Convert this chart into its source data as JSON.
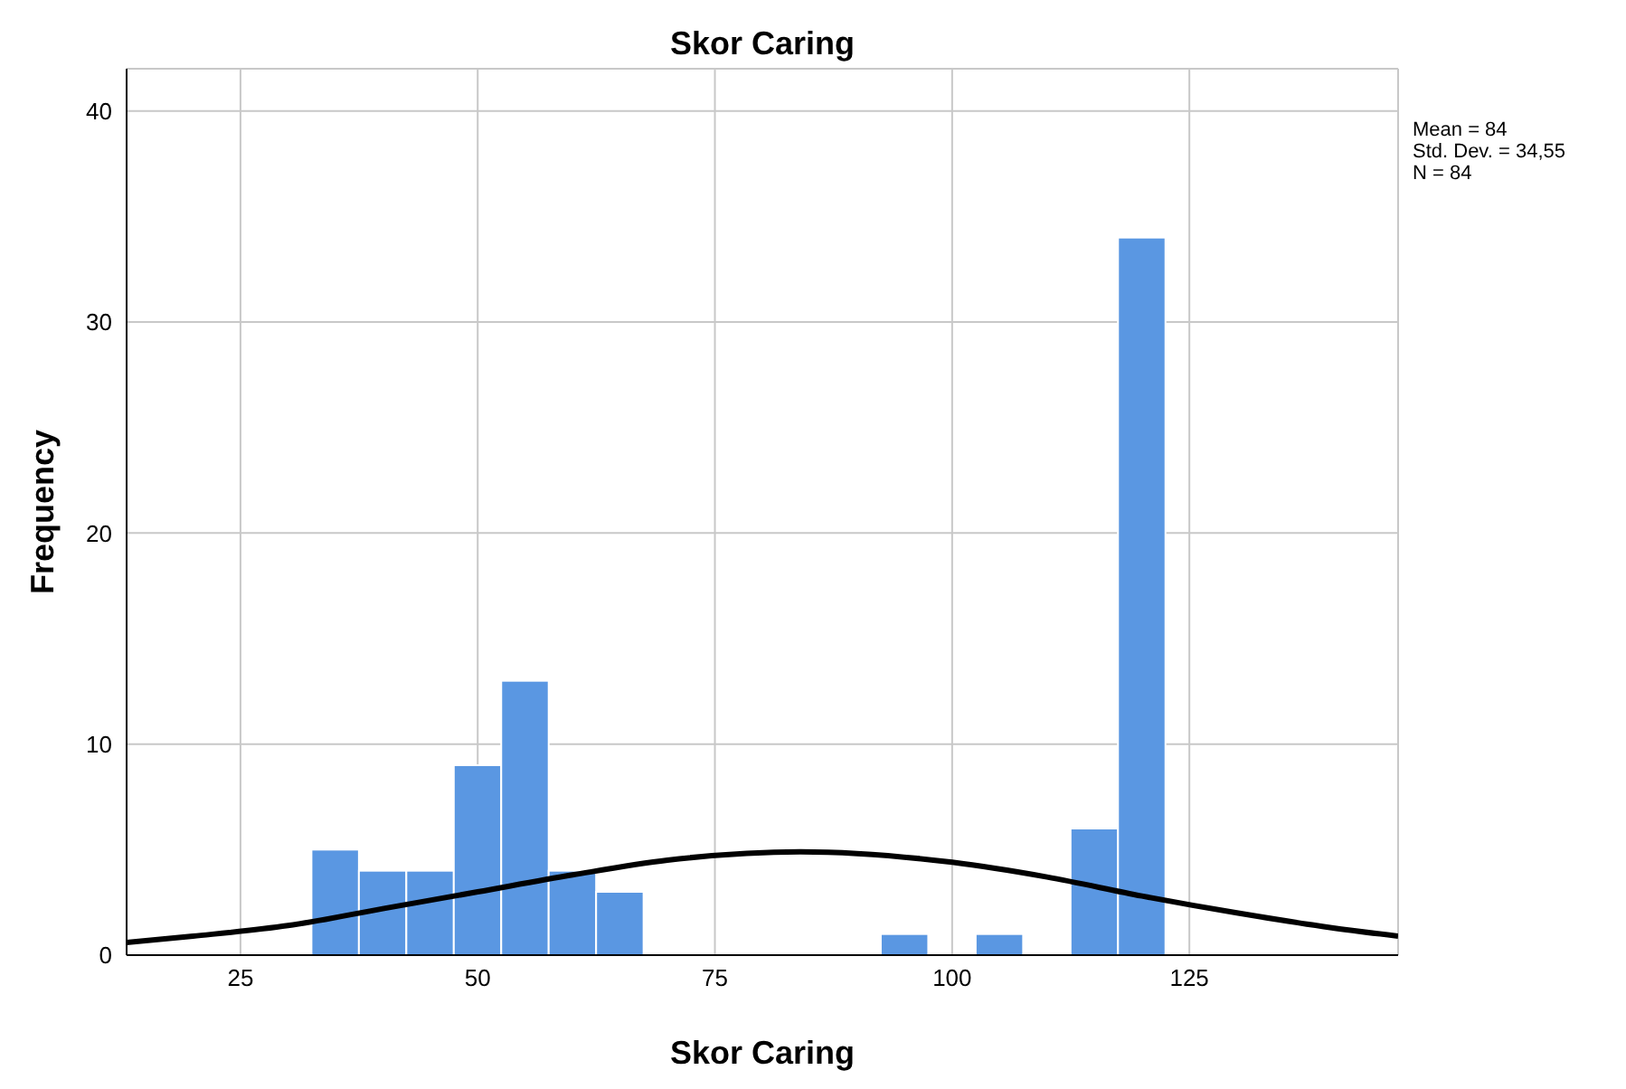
{
  "chart_data": {
    "type": "histogram",
    "title": "Skor Caring",
    "xlabel": "Skor Caring",
    "ylabel": "Frequency",
    "bins": [
      32.5,
      37.5,
      42.5,
      47.5,
      52.5,
      57.5,
      62.5,
      67.5,
      72.5,
      77.5,
      82.5,
      87.5,
      92.5,
      97.5,
      102.5,
      107.5,
      112.5,
      117.5,
      122.5
    ],
    "values": [
      5,
      4,
      4,
      9,
      13,
      4,
      3,
      0,
      0,
      0,
      0,
      0,
      1,
      0,
      1,
      0,
      6,
      34
    ],
    "color": "#5a97e2",
    "series": [
      {
        "type": "line",
        "color": "#000000",
        "x": [
          13,
          20,
          30,
          40,
          50,
          60,
          70,
          84,
          100,
          110,
          120,
          130,
          140,
          147
        ],
        "values": [
          0.6,
          0.9,
          1.4,
          2.2,
          3.0,
          3.8,
          4.5,
          4.9,
          4.4,
          3.7,
          2.8,
          2.0,
          1.3,
          0.9
        ]
      }
    ],
    "xlim": [
      13,
      147
    ],
    "xticks": [
      25,
      50,
      75,
      100,
      125
    ],
    "ylim": [
      0,
      42
    ],
    "yticks": [
      0,
      10,
      20,
      30,
      40
    ],
    "grid": true,
    "annotations": [
      "Mean = 84",
      "Std. Dev. = 34,55",
      "N = 84"
    ]
  }
}
